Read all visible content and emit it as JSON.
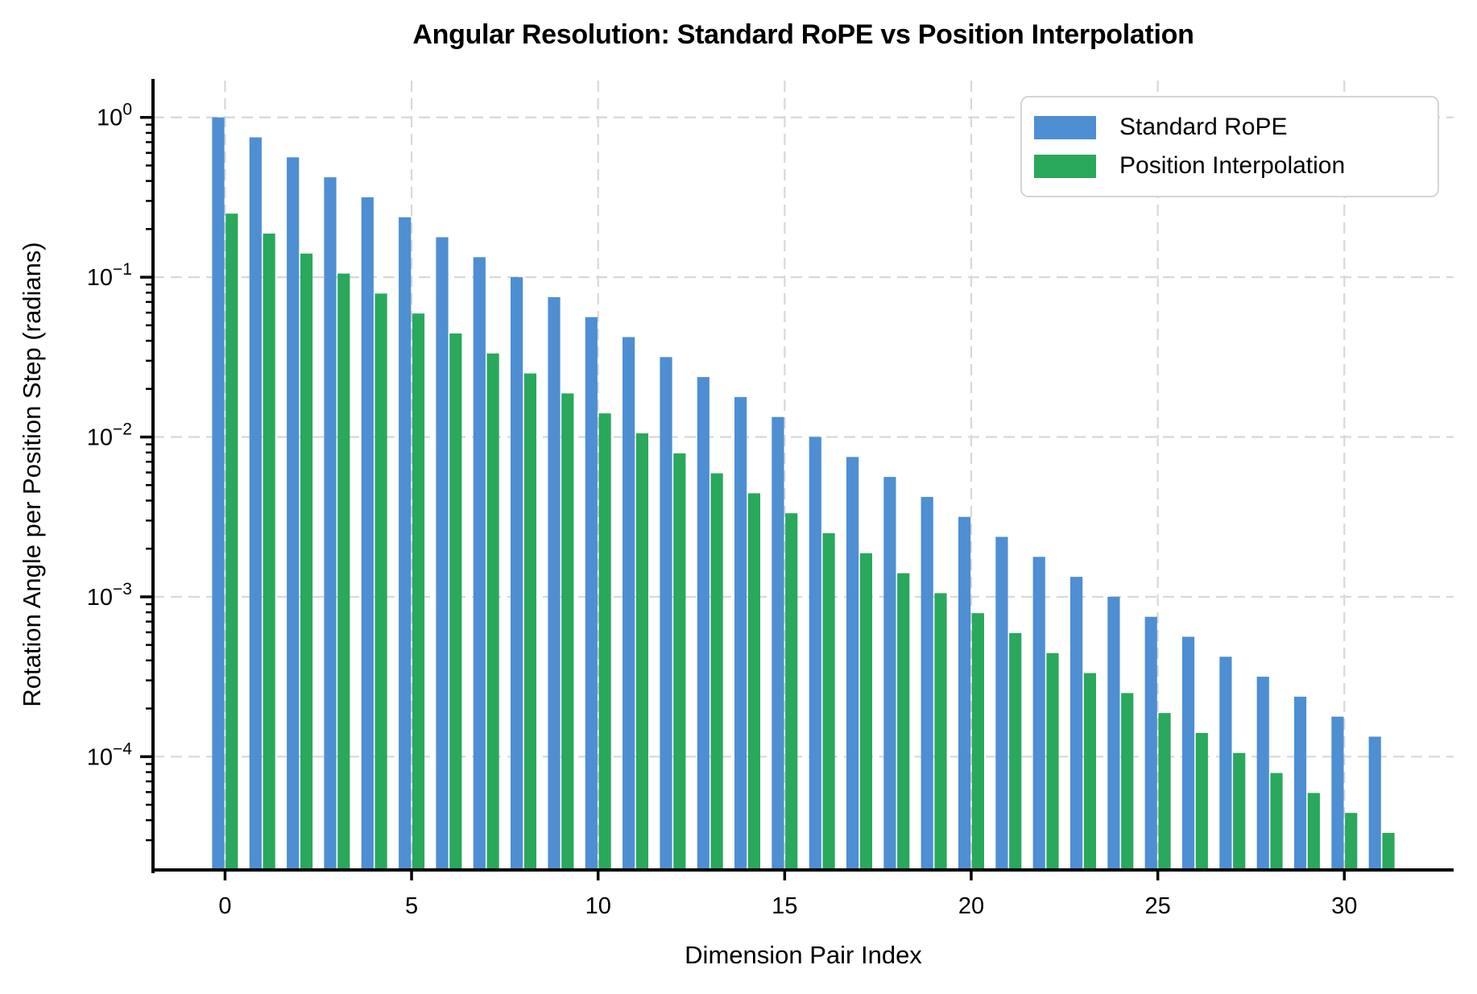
{
  "chart_data": {
    "type": "bar",
    "title": "Angular Resolution: Standard RoPE vs Position Interpolation",
    "xlabel": "Dimension Pair Index",
    "ylabel": "Rotation Angle per Position Step (radians)",
    "yscale": "log",
    "grid": true,
    "legend_position": "upper right",
    "x": [
      0,
      1,
      2,
      3,
      4,
      5,
      6,
      7,
      8,
      9,
      10,
      11,
      12,
      13,
      14,
      15,
      16,
      17,
      18,
      19,
      20,
      21,
      22,
      23,
      24,
      25,
      26,
      27,
      28,
      29,
      30,
      31
    ],
    "xticks": [
      0,
      5,
      10,
      15,
      20,
      25,
      30
    ],
    "ytick_exponents": [
      0,
      -1,
      -2,
      -3,
      -4
    ],
    "xlim": [
      -1.93,
      32.93
    ],
    "ylim": [
      2e-05,
      1.7
    ],
    "series": [
      {
        "name": "Standard RoPE",
        "color": "#4e8ed2",
        "values": [
          1.0,
          0.74989,
          0.56234,
          0.4217,
          0.31623,
          0.23714,
          0.17783,
          0.13335,
          0.1,
          0.074989,
          0.056234,
          0.04217,
          0.031623,
          0.023714,
          0.017783,
          0.013335,
          0.01,
          0.0074989,
          0.0056234,
          0.004217,
          0.0031623,
          0.0023714,
          0.0017783,
          0.0013335,
          0.001,
          0.00074989,
          0.00056234,
          0.0004217,
          0.00031623,
          0.00023714,
          0.00017783,
          0.00013335
        ]
      },
      {
        "name": "Position Interpolation",
        "color": "#2aa85c",
        "values": [
          0.25,
          0.18747,
          0.14059,
          0.10543,
          0.079057,
          0.059286,
          0.044457,
          0.033337,
          0.025,
          0.018747,
          0.014059,
          0.010543,
          0.0079057,
          0.0059286,
          0.0044457,
          0.0033337,
          0.0025,
          0.0018747,
          0.0014059,
          0.0010543,
          0.00079057,
          0.00059286,
          0.00044457,
          0.00033337,
          0.00025,
          0.00018747,
          0.00014059,
          0.00010543,
          7.9057e-05,
          5.9286e-05,
          4.4457e-05,
          3.3337e-05
        ]
      }
    ]
  }
}
